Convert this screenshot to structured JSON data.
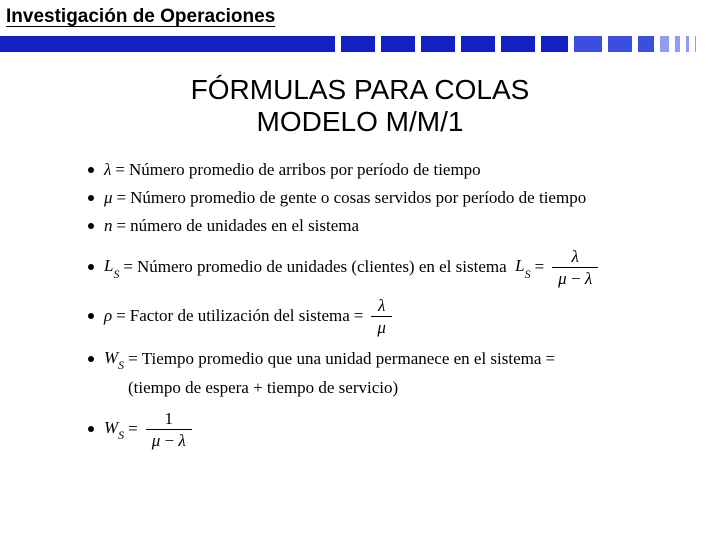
{
  "header": {
    "title": "Investigación de Operaciones",
    "bar": {
      "long_color": "#1320c3",
      "mid_color": "#3a4fe0",
      "light_color": "#8f9cf0",
      "vlight_color": "#c5ccf6",
      "long_width": 340,
      "seg_widths": [
        40,
        40,
        40,
        40,
        40,
        34,
        34,
        30,
        22,
        15,
        11,
        9,
        7,
        6,
        5,
        4,
        3
      ]
    }
  },
  "title": {
    "line1": "FÓRMULAS PARA COLAS",
    "line2": "MODELO M/M/1"
  },
  "defs": {
    "lambda": "Número promedio de arribos por período de tiempo",
    "mu": "Número promedio de gente o cosas servidos por período de tiempo",
    "n": "número de unidades en el sistema",
    "Ls_text": "Número promedio de unidades (clientes) en el sistema",
    "rho": "Factor de utilización del sistema",
    "Ws": "Tiempo promedio que una unidad permanece en el sistema",
    "Ws2": "(tiempo de espera + tiempo de servicio)"
  },
  "symbols": {
    "lambda": "λ",
    "mu": "μ",
    "rho": "ρ",
    "n": "n",
    "L": "L",
    "W": "W",
    "S": "S",
    "eq": "=",
    "minus": "−",
    "one": "1"
  }
}
